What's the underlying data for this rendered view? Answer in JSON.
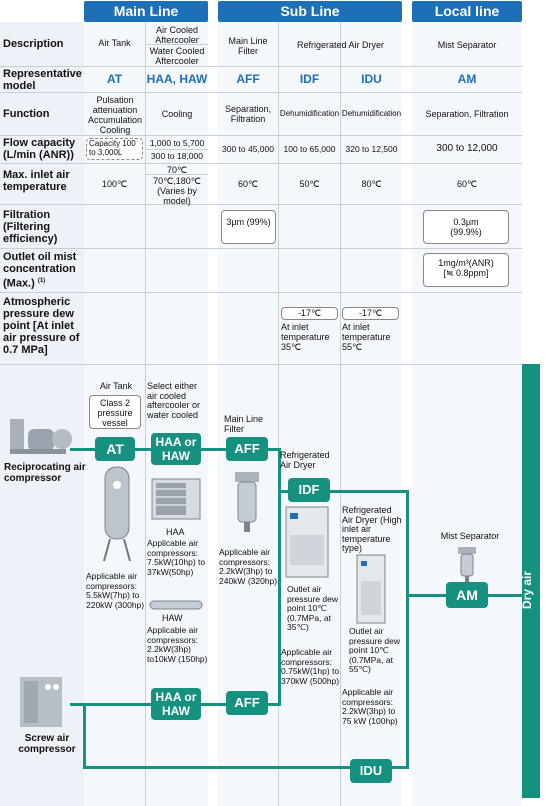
{
  "headers": {
    "main": "Main Line",
    "sub": "Sub Line",
    "local": "Local line"
  },
  "row_labels": {
    "description": "Description",
    "model": "Representative model",
    "function": "Function",
    "flow": "Flow capacity (L/min (ANR))",
    "temp": "Max. inlet air temperature",
    "filtration": "Filtration (Filtering efficiency)",
    "oilmist": "Outlet oil mist concentration (Max.)",
    "oilmist_note": "(1)",
    "dewpoint": "Atmospheric pressure dew point [At inlet air pressure of 0.7 MPa]"
  },
  "description": {
    "at": "Air Tank",
    "haa_air": "Air Cooled Aftercooler",
    "haa_water": "Water Cooled Aftercooler",
    "aff": "Main Line Filter",
    "idf_idu": "Refrigerated Air Dryer",
    "am": "Mist Separator"
  },
  "models": {
    "at": "AT",
    "haa": "HAA, HAW",
    "aff": "AFF",
    "idf": "IDF",
    "idu": "IDU",
    "am": "AM"
  },
  "function": {
    "at": "Pulsation attenuation Accumulation Cooling",
    "haa": "Cooling",
    "aff": "Separation, Filtration",
    "idf": "Dehumidification",
    "idu": "Dehumidification",
    "am": "Separation, Filtration"
  },
  "flow": {
    "at": "Capacity 100 to 3,000L",
    "haa_1": "1,000 to 5,700",
    "haa_2": "300 to 18,000",
    "aff": "300 to 45,000",
    "idf": "100 to 65,000",
    "idu": "320 to 12,500",
    "am": "300 to 12,000"
  },
  "temp": {
    "at": "100℃",
    "haa_1": "70℃",
    "haa_2": "70℃,180℃ (Varies by model)",
    "aff": "60℃",
    "idf": "50℃",
    "idu": "80℃",
    "am": "60℃"
  },
  "filtration": {
    "aff": "3µm (99%)",
    "am": "0.3µm (99.9%)"
  },
  "oilmist": {
    "am": "1mg/m³(ANR) [≒ 0.8ppm]"
  },
  "dewpoint": {
    "idf_val": "-17℃",
    "idf_note": "At inlet temperature 35℃",
    "idu_val": "-17℃",
    "idu_note": "At inlet temperature 55℃"
  },
  "diagram": {
    "at_title": "Air Tank",
    "at_box": "Class 2 pressure vessel",
    "haa_note": "Select either air cooled aftercooler or water cooled",
    "recip": "Reciprocating air compressor",
    "screw": "Screw air compressor",
    "badges": {
      "at": "AT",
      "haa": "HAA or HAW",
      "aff": "AFF",
      "idf": "IDF",
      "idu": "IDU",
      "am": "AM"
    },
    "aff_title": "Main Line Filter",
    "idf_title": "Refrigerated Air Dryer",
    "idu_title": "Refrigerated Air Dryer (High inlet air temperature type)",
    "am_title": "Mist Separator",
    "at_app": "Applicable air compressors: 5.5kW(7hp) to 220kW (300hp)",
    "haa_label": "HAA",
    "haa_app": "Applicable air compressors: 7.5kW(10hp) to 37kW(50hp)",
    "haw_label": "HAW",
    "haw_app": "Applicable air compressors: 2.2kW(3hp) to10kW (150hp)",
    "aff_app": "Applicable air compressors: 2.2kW(3hp) to 240kW (320hp)",
    "idf_outlet": "Outlet air pressure dew point 10℃ (0.7MPa, at 35℃)",
    "idf_app": "Applicable air compressors: 0.75kW(1hp) to 370kW (500hp)",
    "idu_outlet": "Outlet air pressure dew point 10℃ (0.7MPa, at 55℃)",
    "idu_app": "Applicable air compressors: 2.2kW(3hp) to 75 kW (100hp)",
    "dry_air": "Dry air"
  },
  "colors": {
    "header": "#1d6fb8",
    "flow": "#16907f",
    "label_bg": "#eef2f8"
  }
}
